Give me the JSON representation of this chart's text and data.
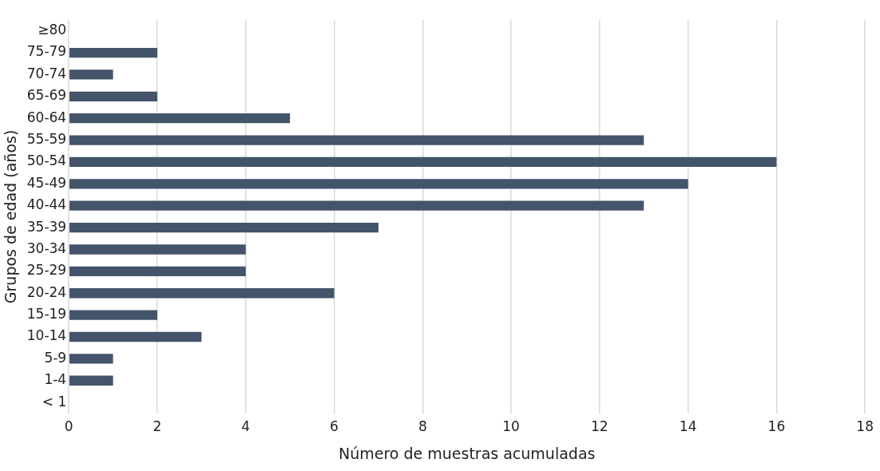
{
  "chart_data": {
    "type": "bar",
    "orientation": "horizontal",
    "xlabel": "Número de muestras acumuladas",
    "ylabel": "Grupos de edad (años)",
    "categories": [
      "≥80",
      "75-79",
      "70-74",
      "65-69",
      "60-64",
      "55-59",
      "50-54",
      "45-49",
      "40-44",
      "35-39",
      "30-34",
      "25-29",
      "20-24",
      "15-19",
      "10-14",
      "5-9",
      "1-4",
      "< 1"
    ],
    "values": [
      0,
      2,
      1,
      2,
      5,
      13,
      16,
      14,
      13,
      7,
      4,
      4,
      6,
      2,
      3,
      1,
      1,
      0
    ],
    "color": "#44546a",
    "xlim": [
      0,
      18
    ],
    "xticks": [
      0,
      2,
      4,
      6,
      8,
      10,
      12,
      14,
      16,
      18
    ],
    "grid": "x"
  }
}
